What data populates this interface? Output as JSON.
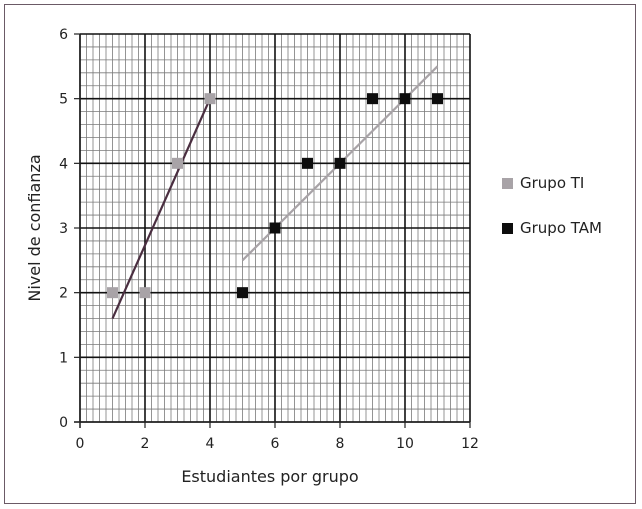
{
  "chart_data": {
    "type": "scatter",
    "xlabel": "Estudiantes por grupo",
    "ylabel": "Nivel de confianza",
    "xlim": [
      0,
      12
    ],
    "ylim": [
      0,
      6
    ],
    "x_ticks": [
      0,
      2,
      4,
      6,
      8,
      10,
      12
    ],
    "y_ticks": [
      0,
      1,
      2,
      3,
      4,
      5,
      6
    ],
    "grid": true,
    "legend_position": "right",
    "series": [
      {
        "name": "Grupo TI",
        "color": "#a8a3a7",
        "points": [
          {
            "x": 1,
            "y": 2
          },
          {
            "x": 2,
            "y": 2
          },
          {
            "x": 3,
            "y": 4
          },
          {
            "x": 4,
            "y": 5
          }
        ],
        "trendline": {
          "color": "#4a2e40",
          "from": {
            "x": 1,
            "y": 1.6
          },
          "to": {
            "x": 4,
            "y": 5
          }
        }
      },
      {
        "name": "Grupo TAM",
        "color": "#0d0d0d",
        "points": [
          {
            "x": 5,
            "y": 2
          },
          {
            "x": 6,
            "y": 3
          },
          {
            "x": 7,
            "y": 4
          },
          {
            "x": 8,
            "y": 4
          },
          {
            "x": 9,
            "y": 5
          },
          {
            "x": 10,
            "y": 5
          },
          {
            "x": 11,
            "y": 5
          }
        ],
        "trendline": {
          "color": "#a8a3a7",
          "from": {
            "x": 5,
            "y": 2.5
          },
          "to": {
            "x": 11,
            "y": 5.5
          }
        }
      }
    ]
  }
}
